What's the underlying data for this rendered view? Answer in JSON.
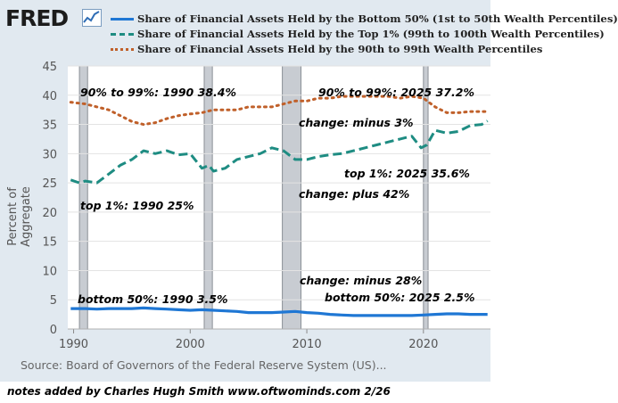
{
  "logo_text": "FRED",
  "colors": {
    "bottom50": "#1f77d4",
    "top1": "#1e8c82",
    "p90to99": "#c0602a",
    "recession": "#c8ccd2"
  },
  "source": "Source: Board of Governors of the Federal Reserve System (US)...",
  "footer_note": "notes added by Charles Hugh Smith   www.oftwominds.com  2/26",
  "annotations": {
    "p90_1990": "90% to 99%: 1990  38.4%",
    "p90_2025": "90% to 99%: 2025 37.2%",
    "p90_change": "change: minus 3%",
    "top1_2025": "top 1%: 2025 35.6%",
    "top1_change": "change: plus 42%",
    "top1_1990": "top 1%: 1990 25%",
    "bottom_change": "change: minus 28%",
    "bottom_2025": "bottom 50%: 2025 2.5%",
    "bottom_1990": "bottom 50%: 1990  3.5%"
  },
  "chart_data": {
    "type": "line",
    "title": "",
    "xlabel": "",
    "ylabel": "Percent of Aggregate",
    "xlim": [
      1989.5,
      2025.75
    ],
    "ylim": [
      0,
      45
    ],
    "y_ticks": [
      0,
      5,
      10,
      15,
      20,
      25,
      30,
      35,
      40,
      45
    ],
    "x_ticks": [
      1990,
      2000,
      2010,
      2020
    ],
    "grid": "horizontal",
    "legend_position": "top",
    "recessions": [
      [
        1990.5,
        1991.2
      ],
      [
        2001.2,
        2001.9
      ],
      [
        2007.9,
        2009.5
      ],
      [
        2020.0,
        2020.4
      ]
    ],
    "series": [
      {
        "name": "Share of Financial Assets Held by the Bottom 50% (1st to 50th Wealth Percentiles)",
        "style": "solid",
        "points": [
          [
            1989.75,
            3.5
          ],
          [
            1991,
            3.5
          ],
          [
            1992,
            3.4
          ],
          [
            1993,
            3.5
          ],
          [
            1994,
            3.5
          ],
          [
            1995,
            3.5
          ],
          [
            1996,
            3.6
          ],
          [
            1997,
            3.5
          ],
          [
            1998,
            3.4
          ],
          [
            1999,
            3.3
          ],
          [
            2000,
            3.2
          ],
          [
            2001,
            3.3
          ],
          [
            2002,
            3.2
          ],
          [
            2003,
            3.1
          ],
          [
            2004,
            3.0
          ],
          [
            2005,
            2.8
          ],
          [
            2006,
            2.8
          ],
          [
            2007,
            2.8
          ],
          [
            2008,
            2.9
          ],
          [
            2009,
            3.0
          ],
          [
            2010,
            2.8
          ],
          [
            2011,
            2.7
          ],
          [
            2012,
            2.5
          ],
          [
            2013,
            2.4
          ],
          [
            2014,
            2.3
          ],
          [
            2015,
            2.3
          ],
          [
            2016,
            2.3
          ],
          [
            2017,
            2.3
          ],
          [
            2018,
            2.3
          ],
          [
            2019,
            2.3
          ],
          [
            2020,
            2.4
          ],
          [
            2021,
            2.5
          ],
          [
            2022,
            2.6
          ],
          [
            2023,
            2.6
          ],
          [
            2024,
            2.5
          ],
          [
            2025.5,
            2.5
          ]
        ]
      },
      {
        "name": "Share of Financial Assets Held by the Top 1% (99th to 100th Wealth Percentiles)",
        "style": "dashed",
        "points": [
          [
            1989.75,
            25.5
          ],
          [
            1990.5,
            25.0
          ],
          [
            1991,
            25.3
          ],
          [
            1992,
            25.0
          ],
          [
            1993,
            26.5
          ],
          [
            1994,
            28.0
          ],
          [
            1995,
            29.0
          ],
          [
            1996,
            30.5
          ],
          [
            1997,
            30.0
          ],
          [
            1998,
            30.5
          ],
          [
            1999,
            29.8
          ],
          [
            2000,
            30.0
          ],
          [
            2001,
            27.5
          ],
          [
            2001.6,
            28.0
          ],
          [
            2002,
            27.0
          ],
          [
            2003,
            27.5
          ],
          [
            2004,
            29.0
          ],
          [
            2005,
            29.5
          ],
          [
            2006,
            30.0
          ],
          [
            2007,
            31.0
          ],
          [
            2008,
            30.5
          ],
          [
            2009,
            29.0
          ],
          [
            2010,
            29.0
          ],
          [
            2011,
            29.5
          ],
          [
            2012,
            29.8
          ],
          [
            2013,
            30.0
          ],
          [
            2014,
            30.5
          ],
          [
            2015,
            31.0
          ],
          [
            2016,
            31.5
          ],
          [
            2017,
            32.0
          ],
          [
            2018,
            32.5
          ],
          [
            2019,
            33.0
          ],
          [
            2019.8,
            31.0
          ],
          [
            2020.3,
            31.5
          ],
          [
            2021,
            34.0
          ],
          [
            2022,
            33.5
          ],
          [
            2023,
            33.8
          ],
          [
            2024,
            34.8
          ],
          [
            2025,
            35.0
          ],
          [
            2025.5,
            35.6
          ]
        ]
      },
      {
        "name": "Share of Financial Assets Held by the 90th to 99th Wealth Percentiles",
        "style": "dotted",
        "points": [
          [
            1989.75,
            38.8
          ],
          [
            1991,
            38.5
          ],
          [
            1992,
            38.0
          ],
          [
            1993,
            37.5
          ],
          [
            1994,
            36.5
          ],
          [
            1995,
            35.5
          ],
          [
            1996,
            35.0
          ],
          [
            1997,
            35.3
          ],
          [
            1998,
            36.0
          ],
          [
            1999,
            36.5
          ],
          [
            2000,
            36.8
          ],
          [
            2001,
            37.0
          ],
          [
            2002,
            37.5
          ],
          [
            2003,
            37.5
          ],
          [
            2004,
            37.5
          ],
          [
            2005,
            38.0
          ],
          [
            2006,
            38.0
          ],
          [
            2007,
            38.0
          ],
          [
            2008,
            38.5
          ],
          [
            2009,
            39.0
          ],
          [
            2010,
            39.0
          ],
          [
            2011,
            39.5
          ],
          [
            2012,
            39.5
          ],
          [
            2013,
            39.8
          ],
          [
            2014,
            39.8
          ],
          [
            2015,
            39.8
          ],
          [
            2016,
            39.8
          ],
          [
            2017,
            39.8
          ],
          [
            2018,
            39.5
          ],
          [
            2019,
            39.8
          ],
          [
            2020,
            39.5
          ],
          [
            2021,
            38.0
          ],
          [
            2022,
            37.0
          ],
          [
            2023,
            37.0
          ],
          [
            2024,
            37.2
          ],
          [
            2025.5,
            37.2
          ]
        ]
      }
    ]
  }
}
